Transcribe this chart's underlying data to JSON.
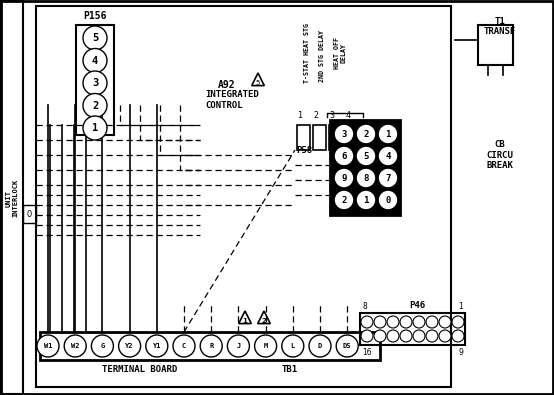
{
  "bg_color": "#ffffff",
  "line_color": "#000000",
  "p156_label": "P156",
  "p156_pins": [
    "5",
    "4",
    "3",
    "2",
    "1"
  ],
  "a92_label": "A92",
  "a92_sub": "INTEGRATED\nCONTROL",
  "relay_labels_vert": [
    "T-STAT HEAT STG",
    "2ND STG DELAY",
    "HEAT OFF\nDELAY"
  ],
  "relay_numbers": [
    "1",
    "2",
    "3",
    "4"
  ],
  "p58_label": "P58",
  "p58_pins": [
    [
      "3",
      "2",
      "1"
    ],
    [
      "6",
      "5",
      "4"
    ],
    [
      "9",
      "8",
      "7"
    ],
    [
      "2",
      "1",
      "0"
    ]
  ],
  "p46_label": "P46",
  "p46_top_label": "8",
  "p46_right_label": "1",
  "p46_bot_label": "16",
  "p46_bot_right": "9",
  "t1_label": "T1\nTRANSF",
  "cb_label": "CB\nCIRCU\nBREAK",
  "terminal_labels": [
    "W1",
    "W2",
    "G",
    "Y2",
    "Y1",
    "C",
    "R",
    "J",
    "M",
    "L",
    "D",
    "DS"
  ],
  "terminal_board_label": "TERMINAL BOARD",
  "tb1_label": "TB1",
  "unit_interlock": "UNIT\nINTERLOCK"
}
